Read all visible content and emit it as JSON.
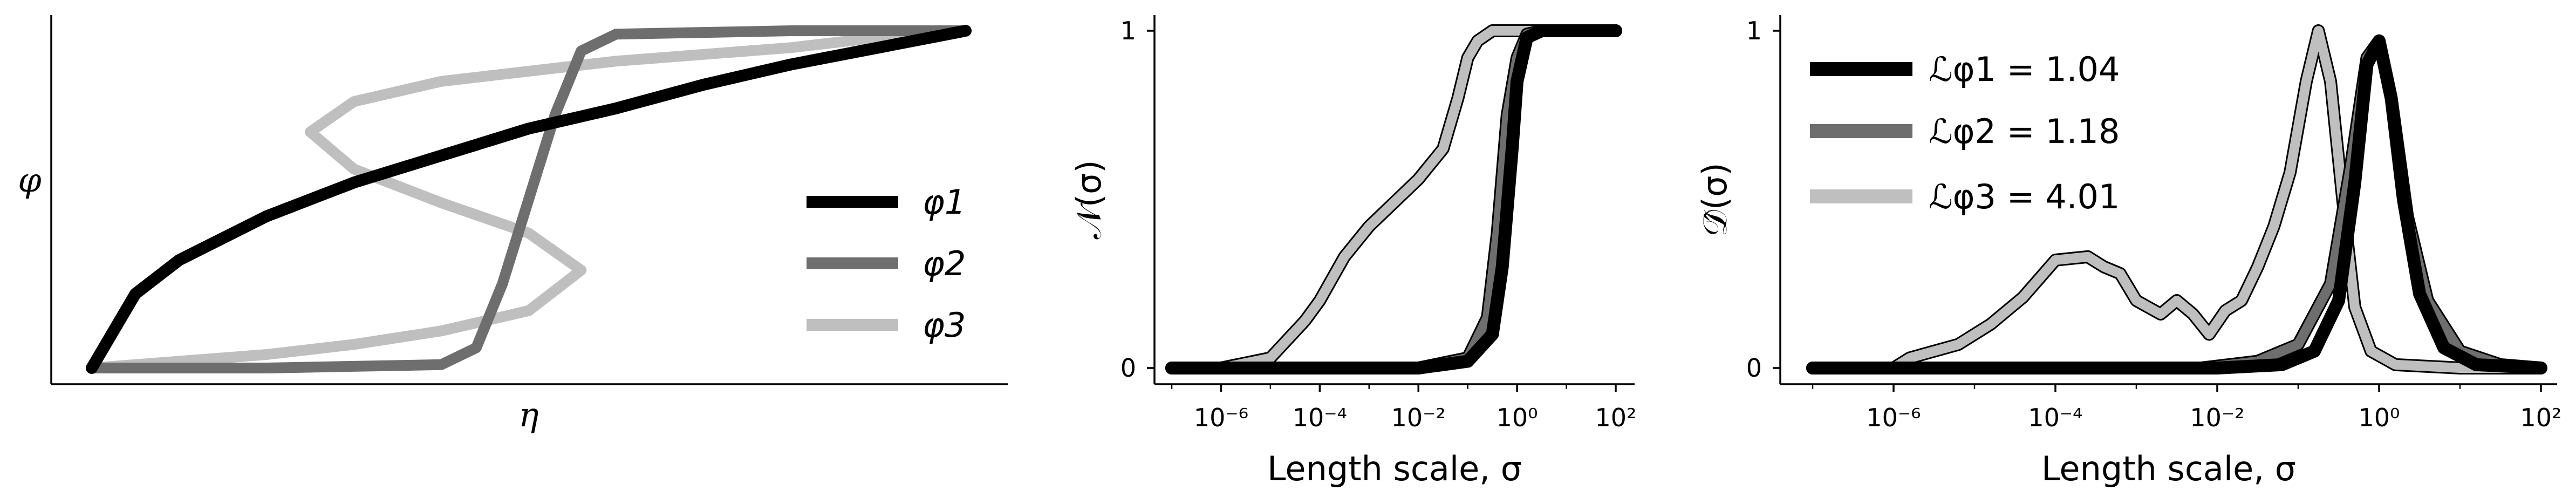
{
  "colors": {
    "phi1": "#000000",
    "phi2": "#6e6e6e",
    "phi3": "#bfbfbf"
  },
  "chart_data": [
    {
      "type": "line",
      "xlabel": "η",
      "ylabel": "φ",
      "xlim": [
        0,
        1
      ],
      "ylim": [
        0,
        1
      ],
      "legend": {
        "placement": "center-right",
        "entries": [
          "φ1",
          "φ2",
          "φ3"
        ]
      },
      "series": [
        {
          "name": "φ1",
          "x": [
            0,
            0.05,
            0.1,
            0.2,
            0.3,
            0.4,
            0.5,
            0.6,
            0.7,
            0.8,
            0.9,
            1.0
          ],
          "y": [
            0,
            0.22,
            0.32,
            0.45,
            0.55,
            0.63,
            0.71,
            0.77,
            0.84,
            0.9,
            0.95,
            1.0
          ]
        },
        {
          "name": "φ2",
          "x": [
            0,
            0.2,
            0.4,
            0.44,
            0.47,
            0.5,
            0.53,
            0.56,
            0.6,
            0.8,
            1.0
          ],
          "y": [
            0,
            0.0,
            0.01,
            0.06,
            0.25,
            0.5,
            0.75,
            0.94,
            0.99,
            1.0,
            1.0
          ]
        },
        {
          "name": "φ3",
          "x": [
            0,
            0.1,
            0.2,
            0.3,
            0.4,
            0.5,
            0.56,
            0.5,
            0.4,
            0.3,
            0.25,
            0.3,
            0.4,
            0.5,
            0.6,
            0.7,
            0.8,
            0.9,
            1.0
          ],
          "y": [
            0,
            0.02,
            0.04,
            0.07,
            0.11,
            0.17,
            0.29,
            0.4,
            0.49,
            0.59,
            0.7,
            0.79,
            0.85,
            0.88,
            0.91,
            0.93,
            0.95,
            0.98,
            1.0
          ]
        }
      ]
    },
    {
      "type": "line",
      "xlabel": "Length scale, σ",
      "ylabel": "𝒩(σ)",
      "xscale": "log",
      "xlim": [
        1e-07,
        100.0
      ],
      "ylim": [
        0,
        1
      ],
      "xticks": [
        "10⁻⁶",
        "10⁻⁴",
        "10⁻²",
        "10⁰",
        "10²"
      ],
      "yticks": [
        "0",
        "1"
      ],
      "series": [
        {
          "name": "φ1",
          "log10x": [
            -7,
            -2,
            -1,
            -0.5,
            -0.3,
            -0.1,
            0,
            0.2,
            0.5,
            1,
            2
          ],
          "y": [
            0,
            0,
            0.02,
            0.1,
            0.3,
            0.65,
            0.85,
            0.98,
            1,
            1,
            1
          ]
        },
        {
          "name": "φ2",
          "log10x": [
            -7,
            -2,
            -1,
            -0.6,
            -0.4,
            -0.2,
            0,
            0.2,
            0.5,
            1,
            2
          ],
          "y": [
            0,
            0,
            0.03,
            0.15,
            0.4,
            0.75,
            0.92,
            0.99,
            1,
            1,
            1
          ]
        },
        {
          "name": "φ3",
          "log10x": [
            -7,
            -6,
            -5,
            -4.3,
            -4,
            -3.5,
            -3,
            -2.5,
            -2,
            -1.5,
            -1.2,
            -1,
            -0.8,
            -0.5,
            0,
            1,
            2
          ],
          "y": [
            0,
            0,
            0.03,
            0.14,
            0.2,
            0.33,
            0.42,
            0.49,
            0.56,
            0.65,
            0.8,
            0.92,
            0.97,
            1,
            1,
            1,
            1
          ]
        }
      ]
    },
    {
      "type": "line",
      "xlabel": "Length scale, σ",
      "ylabel": "𝒟̂(σ)",
      "xscale": "log",
      "xlim": [
        1e-07,
        100.0
      ],
      "ylim": [
        0,
        1
      ],
      "xticks": [
        "10⁻⁶",
        "10⁻⁴",
        "10⁻²",
        "10⁰",
        "10²"
      ],
      "yticks": [
        "0",
        "1"
      ],
      "legend": {
        "placement": "top-left",
        "entries": [
          "ℒφ1 = 1.04",
          "ℒφ2 = 1.18",
          "ℒφ3 = 4.01"
        ]
      },
      "series": [
        {
          "name": "ℒφ1 = 1.04",
          "log10x": [
            -7,
            -2,
            -1.2,
            -0.8,
            -0.5,
            -0.3,
            -0.15,
            0,
            0.15,
            0.3,
            0.5,
            0.8,
            1.2,
            2
          ],
          "y": [
            0,
            0,
            0.01,
            0.05,
            0.2,
            0.55,
            0.9,
            0.97,
            0.8,
            0.5,
            0.22,
            0.06,
            0.01,
            0
          ]
        },
        {
          "name": "ℒφ2 = 1.18",
          "log10x": [
            -7,
            -2.2,
            -1.5,
            -1,
            -0.6,
            -0.35,
            -0.15,
            0,
            0.15,
            0.35,
            0.6,
            1,
            1.5,
            2
          ],
          "y": [
            0,
            0,
            0.02,
            0.07,
            0.25,
            0.6,
            0.92,
            0.97,
            0.8,
            0.45,
            0.2,
            0.05,
            0.01,
            0
          ]
        },
        {
          "name": "ℒφ3 = 4.01",
          "log10x": [
            -7,
            -6,
            -5.8,
            -5.2,
            -4.8,
            -4.4,
            -4,
            -3.6,
            -3.4,
            -3.2,
            -3,
            -2.7,
            -2.5,
            -2.3,
            -2.1,
            -1.9,
            -1.7,
            -1.5,
            -1.3,
            -1.1,
            -0.9,
            -0.75,
            -0.6,
            -0.45,
            -0.3,
            -0.1,
            0.2,
            1,
            2
          ],
          "y": [
            0,
            0,
            0.03,
            0.07,
            0.13,
            0.21,
            0.32,
            0.33,
            0.3,
            0.28,
            0.2,
            0.16,
            0.2,
            0.16,
            0.1,
            0.17,
            0.2,
            0.3,
            0.42,
            0.58,
            0.85,
            1.0,
            0.85,
            0.5,
            0.18,
            0.05,
            0.01,
            0,
            0
          ]
        }
      ]
    }
  ]
}
